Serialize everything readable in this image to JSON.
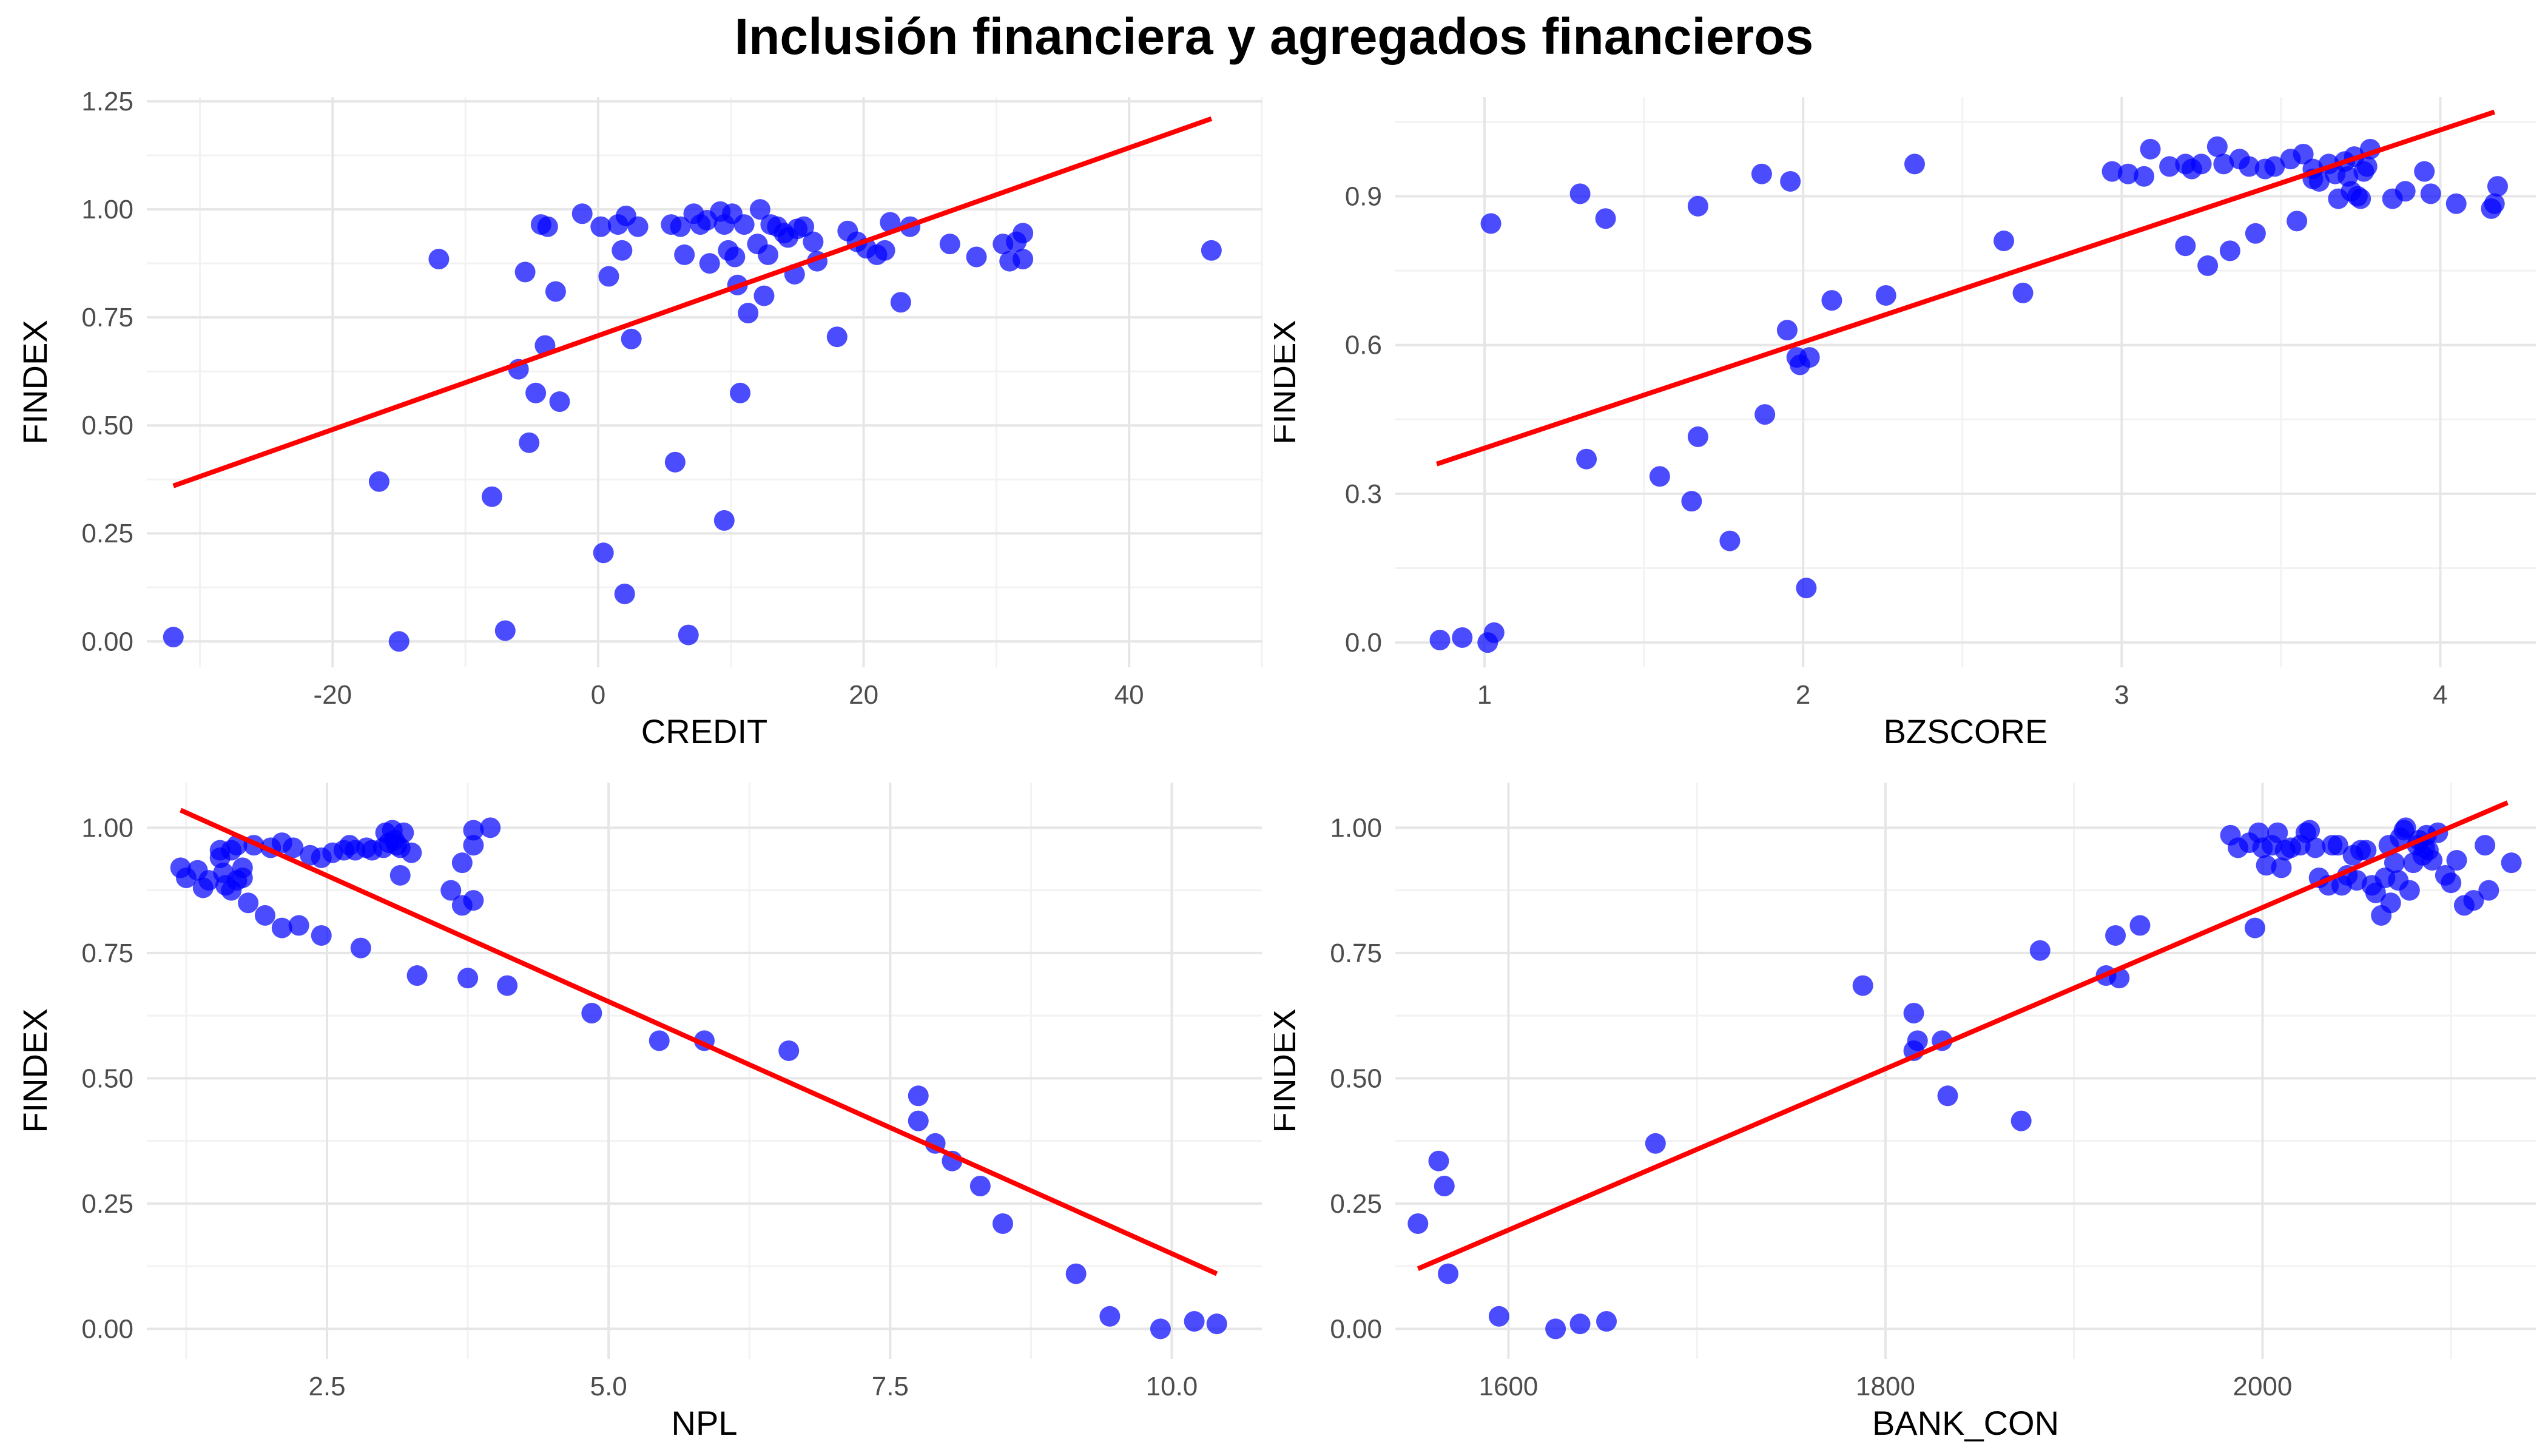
{
  "title": "Inclusión financiera y agregados financieros",
  "colors": {
    "points": "#0000ff",
    "fit_line": "#ff0000",
    "grid_major": "#e6e6e6",
    "grid_minor": "#f2f2f2",
    "tick_text": "#4d4d4d"
  },
  "chart_data": [
    {
      "type": "scatter",
      "xlabel": "CREDIT",
      "ylabel": "FINDEX",
      "xlim": [
        -34,
        50
      ],
      "ylim": [
        -0.06,
        1.26
      ],
      "xticks": [
        -20,
        0,
        20,
        40
      ],
      "yticks": [
        0.0,
        0.25,
        0.5,
        0.75,
        1.0,
        1.25
      ],
      "xtick_labels": [
        "-20",
        "0",
        "20",
        "40"
      ],
      "ytick_labels": [
        "0.00",
        "0.25",
        "0.50",
        "0.75",
        "1.00",
        "1.25"
      ],
      "fit_line": {
        "x": [
          -32,
          46.2
        ],
        "y": [
          0.36,
          1.21
        ]
      },
      "points": [
        [
          -32,
          0.01
        ],
        [
          -15,
          0.0
        ],
        [
          -16.5,
          0.37
        ],
        [
          -12,
          0.885
        ],
        [
          -8,
          0.335
        ],
        [
          -7,
          0.025
        ],
        [
          -6,
          0.63
        ],
        [
          -5.5,
          0.855
        ],
        [
          -5.2,
          0.46
        ],
        [
          -4.7,
          0.575
        ],
        [
          -4.3,
          0.965
        ],
        [
          -4,
          0.685
        ],
        [
          -3.8,
          0.96
        ],
        [
          -3.2,
          0.81
        ],
        [
          -2.9,
          0.555
        ],
        [
          -1.2,
          0.99
        ],
        [
          0.2,
          0.96
        ],
        [
          0.4,
          0.205
        ],
        [
          0.8,
          0.845
        ],
        [
          1.5,
          0.965
        ],
        [
          1.8,
          0.905
        ],
        [
          2,
          0.11
        ],
        [
          2.1,
          0.985
        ],
        [
          2.5,
          0.7
        ],
        [
          3,
          0.96
        ],
        [
          5.5,
          0.965
        ],
        [
          5.8,
          0.415
        ],
        [
          6.2,
          0.96
        ],
        [
          6.5,
          0.895
        ],
        [
          6.8,
          0.015
        ],
        [
          7.2,
          0.99
        ],
        [
          7.7,
          0.965
        ],
        [
          8.2,
          0.975
        ],
        [
          8.4,
          0.875
        ],
        [
          9.2,
          0.995
        ],
        [
          9.5,
          0.965
        ],
        [
          9.5,
          0.28
        ],
        [
          9.8,
          0.905
        ],
        [
          10.1,
          0.99
        ],
        [
          10.3,
          0.89
        ],
        [
          10.5,
          0.825
        ],
        [
          10.7,
          0.575
        ],
        [
          11,
          0.965
        ],
        [
          11.3,
          0.76
        ],
        [
          12,
          0.92
        ],
        [
          12.2,
          1.0
        ],
        [
          12.5,
          0.8
        ],
        [
          12.8,
          0.895
        ],
        [
          13,
          0.965
        ],
        [
          13.5,
          0.96
        ],
        [
          14,
          0.945
        ],
        [
          14.3,
          0.935
        ],
        [
          14.8,
          0.85
        ],
        [
          15,
          0.955
        ],
        [
          15.5,
          0.96
        ],
        [
          16.2,
          0.925
        ],
        [
          16.5,
          0.88
        ],
        [
          18,
          0.705
        ],
        [
          18.8,
          0.95
        ],
        [
          19.5,
          0.925
        ],
        [
          20.2,
          0.91
        ],
        [
          21,
          0.895
        ],
        [
          21.6,
          0.905
        ],
        [
          22,
          0.97
        ],
        [
          22.8,
          0.785
        ],
        [
          23.5,
          0.96
        ],
        [
          26.5,
          0.92
        ],
        [
          28.5,
          0.89
        ],
        [
          30.5,
          0.92
        ],
        [
          31,
          0.88
        ],
        [
          31.5,
          0.925
        ],
        [
          32,
          0.885
        ],
        [
          32,
          0.945
        ],
        [
          46.2,
          0.905
        ]
      ]
    },
    {
      "type": "scatter",
      "xlabel": "BZSCORE",
      "ylabel": "FINDEX",
      "xlim": [
        0.72,
        4.3
      ],
      "ylim": [
        -0.05,
        1.1
      ],
      "xticks": [
        1,
        2,
        3,
        4
      ],
      "yticks": [
        0.0,
        0.3,
        0.6,
        0.9
      ],
      "xtick_labels": [
        "1",
        "2",
        "3",
        "4"
      ],
      "ytick_labels": [
        "0.0",
        "0.3",
        "0.6",
        "0.9"
      ],
      "fit_line": {
        "x": [
          0.85,
          4.17
        ],
        "y": [
          0.36,
          1.07
        ]
      },
      "points": [
        [
          0.86,
          0.005
        ],
        [
          0.93,
          0.01
        ],
        [
          1.01,
          0.0
        ],
        [
          1.03,
          0.02
        ],
        [
          1.02,
          0.845
        ],
        [
          1.3,
          0.905
        ],
        [
          1.32,
          0.37
        ],
        [
          1.38,
          0.855
        ],
        [
          1.55,
          0.335
        ],
        [
          1.65,
          0.285
        ],
        [
          1.67,
          0.415
        ],
        [
          1.67,
          0.88
        ],
        [
          1.77,
          0.205
        ],
        [
          1.87,
          0.945
        ],
        [
          1.88,
          0.46
        ],
        [
          1.95,
          0.63
        ],
        [
          1.96,
          0.93
        ],
        [
          1.98,
          0.575
        ],
        [
          1.99,
          0.56
        ],
        [
          2.01,
          0.11
        ],
        [
          2.02,
          0.575
        ],
        [
          2.09,
          0.69
        ],
        [
          2.26,
          0.7
        ],
        [
          2.35,
          0.965
        ],
        [
          2.63,
          0.81
        ],
        [
          2.69,
          0.705
        ],
        [
          2.97,
          0.95
        ],
        [
          3.02,
          0.945
        ],
        [
          3.07,
          0.94
        ],
        [
          3.09,
          0.995
        ],
        [
          3.15,
          0.96
        ],
        [
          3.2,
          0.965
        ],
        [
          3.2,
          0.8
        ],
        [
          3.22,
          0.955
        ],
        [
          3.25,
          0.965
        ],
        [
          3.27,
          0.76
        ],
        [
          3.3,
          1.0
        ],
        [
          3.32,
          0.965
        ],
        [
          3.34,
          0.79
        ],
        [
          3.37,
          0.975
        ],
        [
          3.4,
          0.96
        ],
        [
          3.42,
          0.825
        ],
        [
          3.45,
          0.955
        ],
        [
          3.48,
          0.96
        ],
        [
          3.53,
          0.975
        ],
        [
          3.55,
          0.85
        ],
        [
          3.57,
          0.985
        ],
        [
          3.6,
          0.955
        ],
        [
          3.6,
          0.935
        ],
        [
          3.62,
          0.93
        ],
        [
          3.65,
          0.965
        ],
        [
          3.67,
          0.945
        ],
        [
          3.68,
          0.895
        ],
        [
          3.7,
          0.97
        ],
        [
          3.71,
          0.94
        ],
        [
          3.72,
          0.91
        ],
        [
          3.73,
          0.98
        ],
        [
          3.74,
          0.9
        ],
        [
          3.75,
          0.895
        ],
        [
          3.76,
          0.95
        ],
        [
          3.77,
          0.96
        ],
        [
          3.78,
          0.995
        ],
        [
          3.85,
          0.895
        ],
        [
          3.89,
          0.91
        ],
        [
          3.95,
          0.95
        ],
        [
          3.97,
          0.905
        ],
        [
          4.05,
          0.885
        ],
        [
          4.16,
          0.875
        ],
        [
          4.17,
          0.885
        ],
        [
          4.18,
          0.92
        ]
      ]
    },
    {
      "type": "scatter",
      "xlabel": "NPL",
      "ylabel": "FINDEX",
      "xlim": [
        0.9,
        10.8
      ],
      "ylim": [
        -0.06,
        1.09
      ],
      "xticks": [
        2.5,
        5.0,
        7.5,
        10.0
      ],
      "yticks": [
        0.0,
        0.25,
        0.5,
        0.75,
        1.0
      ],
      "xtick_labels": [
        "2.5",
        "5.0",
        "7.5",
        "10.0"
      ],
      "ytick_labels": [
        "0.00",
        "0.25",
        "0.50",
        "0.75",
        "1.00"
      ],
      "fit_line": {
        "x": [
          1.2,
          10.4
        ],
        "y": [
          1.035,
          0.11
        ]
      },
      "points": [
        [
          1.2,
          0.92
        ],
        [
          1.25,
          0.9
        ],
        [
          1.35,
          0.915
        ],
        [
          1.4,
          0.88
        ],
        [
          1.45,
          0.895
        ],
        [
          1.55,
          0.94
        ],
        [
          1.55,
          0.955
        ],
        [
          1.58,
          0.91
        ],
        [
          1.6,
          0.885
        ],
        [
          1.65,
          0.875
        ],
        [
          1.65,
          0.955
        ],
        [
          1.7,
          0.895
        ],
        [
          1.7,
          0.965
        ],
        [
          1.75,
          0.9
        ],
        [
          1.75,
          0.92
        ],
        [
          1.8,
          0.85
        ],
        [
          1.85,
          0.965
        ],
        [
          1.95,
          0.825
        ],
        [
          2.0,
          0.96
        ],
        [
          2.1,
          0.8
        ],
        [
          2.1,
          0.97
        ],
        [
          2.2,
          0.96
        ],
        [
          2.25,
          0.805
        ],
        [
          2.35,
          0.945
        ],
        [
          2.45,
          0.785
        ],
        [
          2.45,
          0.94
        ],
        [
          2.55,
          0.95
        ],
        [
          2.65,
          0.955
        ],
        [
          2.7,
          0.965
        ],
        [
          2.75,
          0.955
        ],
        [
          2.8,
          0.76
        ],
        [
          2.85,
          0.96
        ],
        [
          2.9,
          0.955
        ],
        [
          3.0,
          0.96
        ],
        [
          3.02,
          0.99
        ],
        [
          3.05,
          0.97
        ],
        [
          3.08,
          0.995
        ],
        [
          3.1,
          0.975
        ],
        [
          3.12,
          0.965
        ],
        [
          3.15,
          0.96
        ],
        [
          3.18,
          0.99
        ],
        [
          3.15,
          0.905
        ],
        [
          3.25,
          0.95
        ],
        [
          3.3,
          0.705
        ],
        [
          3.6,
          0.875
        ],
        [
          3.7,
          0.845
        ],
        [
          3.7,
          0.93
        ],
        [
          3.8,
          0.855
        ],
        [
          3.8,
          0.965
        ],
        [
          3.8,
          0.995
        ],
        [
          3.95,
          1.0
        ],
        [
          3.75,
          0.7
        ],
        [
          4.1,
          0.685
        ],
        [
          4.85,
          0.63
        ],
        [
          5.45,
          0.575
        ],
        [
          5.85,
          0.575
        ],
        [
          6.6,
          0.555
        ],
        [
          7.75,
          0.465
        ],
        [
          7.75,
          0.415
        ],
        [
          7.9,
          0.37
        ],
        [
          8.05,
          0.335
        ],
        [
          8.3,
          0.285
        ],
        [
          8.5,
          0.21
        ],
        [
          9.15,
          0.11
        ],
        [
          9.45,
          0.025
        ],
        [
          9.9,
          0.0
        ],
        [
          10.2,
          0.015
        ],
        [
          10.4,
          0.01
        ]
      ]
    },
    {
      "type": "scatter",
      "xlabel": "BANK_CON",
      "ylabel": "FINDEX",
      "xlim": [
        1540,
        2145
      ],
      "ylim": [
        -0.06,
        1.09
      ],
      "xticks": [
        1600,
        1800,
        2000
      ],
      "yticks": [
        0.0,
        0.25,
        0.5,
        0.75,
        1.0
      ],
      "xtick_labels": [
        "1600",
        "1800",
        "2000"
      ],
      "ytick_labels": [
        "0.00",
        "0.25",
        "0.50",
        "0.75",
        "1.00"
      ],
      "fit_line": {
        "x": [
          1552,
          2130
        ],
        "y": [
          0.12,
          1.05
        ]
      },
      "points": [
        [
          1552,
          0.21
        ],
        [
          1563,
          0.335
        ],
        [
          1566,
          0.285
        ],
        [
          1568,
          0.11
        ],
        [
          1595,
          0.025
        ],
        [
          1625,
          0.0
        ],
        [
          1638,
          0.01
        ],
        [
          1652,
          0.015
        ],
        [
          1678,
          0.37
        ],
        [
          1788,
          0.685
        ],
        [
          1815,
          0.63
        ],
        [
          1815,
          0.555
        ],
        [
          1817,
          0.575
        ],
        [
          1830,
          0.575
        ],
        [
          1833,
          0.465
        ],
        [
          1872,
          0.415
        ],
        [
          1882,
          0.755
        ],
        [
          1917,
          0.705
        ],
        [
          1922,
          0.785
        ],
        [
          1924,
          0.7
        ],
        [
          1935,
          0.805
        ],
        [
          1983,
          0.985
        ],
        [
          1987,
          0.96
        ],
        [
          1993,
          0.97
        ],
        [
          1996,
          0.8
        ],
        [
          1998,
          0.99
        ],
        [
          2000,
          0.96
        ],
        [
          2002,
          0.925
        ],
        [
          2005,
          0.965
        ],
        [
          2008,
          0.99
        ],
        [
          2010,
          0.92
        ],
        [
          2012,
          0.955
        ],
        [
          2015,
          0.96
        ],
        [
          2020,
          0.965
        ],
        [
          2023,
          0.99
        ],
        [
          2025,
          0.995
        ],
        [
          2028,
          0.96
        ],
        [
          2030,
          0.9
        ],
        [
          2035,
          0.885
        ],
        [
          2037,
          0.965
        ],
        [
          2040,
          0.965
        ],
        [
          2042,
          0.885
        ],
        [
          2045,
          0.905
        ],
        [
          2048,
          0.945
        ],
        [
          2050,
          0.895
        ],
        [
          2052,
          0.955
        ],
        [
          2055,
          0.955
        ],
        [
          2058,
          0.885
        ],
        [
          2060,
          0.87
        ],
        [
          2063,
          0.825
        ],
        [
          2065,
          0.9
        ],
        [
          2067,
          0.965
        ],
        [
          2068,
          0.85
        ],
        [
          2070,
          0.93
        ],
        [
          2072,
          0.895
        ],
        [
          2073,
          0.98
        ],
        [
          2075,
          0.995
        ],
        [
          2076,
          1.0
        ],
        [
          2078,
          0.875
        ],
        [
          2080,
          0.93
        ],
        [
          2082,
          0.965
        ],
        [
          2083,
          0.975
        ],
        [
          2085,
          0.945
        ],
        [
          2086,
          0.96
        ],
        [
          2087,
          0.985
        ],
        [
          2088,
          0.955
        ],
        [
          2090,
          0.935
        ],
        [
          2093,
          0.99
        ],
        [
          2097,
          0.905
        ],
        [
          2100,
          0.89
        ],
        [
          2103,
          0.935
        ],
        [
          2107,
          0.845
        ],
        [
          2112,
          0.855
        ],
        [
          2118,
          0.965
        ],
        [
          2120,
          0.875
        ],
        [
          2132,
          0.93
        ]
      ]
    }
  ]
}
